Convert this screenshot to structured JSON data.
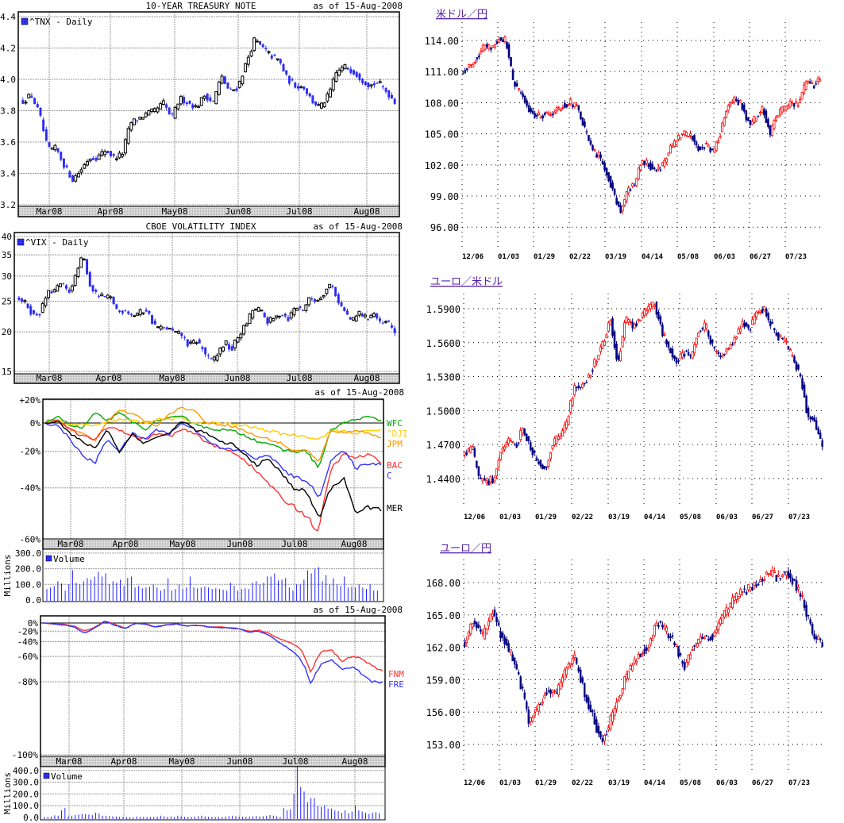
{
  "chart_data": [
    {
      "type": "candlestick",
      "id": "tnx",
      "title": "10-YEAR TREASURY NOTE",
      "as_of": "as of 15-Aug-2008",
      "legend": "^TNX - Daily",
      "yticks": [
        3.2,
        3.4,
        3.6,
        3.8,
        4.0,
        4.2,
        4.4
      ],
      "ytick_labels": [
        "3.2",
        "3.4",
        "3.6",
        "3.8",
        "4.0",
        "4.2",
        "4.4"
      ],
      "months": [
        "Mar08",
        "Apr08",
        "May08",
        "Jun08",
        "Jul08",
        "Aug08"
      ],
      "ylim": [
        3.2,
        4.4
      ],
      "closes": [
        3.86,
        3.9,
        3.78,
        3.55,
        3.56,
        3.45,
        3.36,
        3.42,
        3.5,
        3.5,
        3.55,
        3.5,
        3.52,
        3.72,
        3.75,
        3.78,
        3.8,
        3.85,
        3.75,
        3.88,
        3.85,
        3.82,
        3.9,
        3.85,
        4.02,
        3.92,
        3.95,
        4.1,
        4.25,
        4.2,
        4.15,
        4.12,
        4.0,
        3.96,
        3.95,
        3.86,
        3.82,
        3.9,
        4.05,
        4.08,
        4.05,
        4.0,
        3.96,
        3.98,
        3.92,
        3.86
      ]
    },
    {
      "type": "candlestick",
      "id": "vix",
      "title": "CBOE VOLATILITY INDEX",
      "as_of": "as of 15-Aug-2008",
      "legend": "^VIX - Daily",
      "yticks": [
        15,
        20,
        25,
        30,
        35,
        40
      ],
      "ytick_labels": [
        "15",
        "20",
        "25",
        "30",
        "35",
        "40"
      ],
      "scale": "log",
      "months": [
        "Mar08",
        "Apr08",
        "May08",
        "Jun08",
        "Jul08",
        "Aug08"
      ],
      "ylim": [
        15,
        40
      ],
      "closes": [
        25.5,
        24.5,
        22.5,
        23,
        26.5,
        27,
        28.5,
        26.5,
        30,
        35,
        28,
        26,
        25.8,
        25.5,
        23,
        23.5,
        22.5,
        23,
        23.5,
        21,
        20.5,
        20.5,
        19.8,
        19.5,
        18,
        18.8,
        17.5,
        16,
        17,
        18.5,
        17.5,
        19.5,
        21,
        23.5,
        23.5,
        21.5,
        22,
        23,
        22,
        24,
        23.5,
        25.5,
        25,
        26.5,
        28.5,
        25,
        23,
        21.5,
        23,
        22,
        23,
        21,
        21.5,
        20
      ]
    },
    {
      "type": "line",
      "id": "banks",
      "as_of": "as of 15-Aug-2008",
      "scale": "log-percent",
      "yticks": [
        20,
        0,
        -20,
        -40,
        -60
      ],
      "ytick_labels": [
        "+20%",
        "0%",
        "-20%",
        "-40%",
        "-60%"
      ],
      "months": [
        "Mar08",
        "Apr08",
        "May08",
        "Jun08",
        "Jul08",
        "Aug08"
      ],
      "ylim": [
        -60,
        20
      ],
      "series": [
        {
          "name": "WFC",
          "color": "#00aa00",
          "values": [
            0,
            6,
            -2,
            -4,
            8,
            2,
            8,
            1,
            -5,
            2,
            4,
            5,
            0,
            -4,
            -5,
            -6,
            -9,
            -13,
            -15,
            -19,
            -20,
            -20,
            -30,
            -5,
            0,
            3,
            5,
            2
          ]
        },
        {
          "name": "^DJI",
          "color": "#ffcc00",
          "values": [
            0,
            2,
            -2,
            -1,
            -2,
            0,
            3,
            2,
            0,
            3,
            3,
            4,
            0,
            0,
            0,
            -1,
            -2,
            -4,
            -6,
            -8,
            -9,
            -10,
            -12,
            -6,
            -6,
            -8,
            -6,
            -5
          ]
        },
        {
          "name": "JPM",
          "color": "#ff9900",
          "values": [
            0,
            3,
            -5,
            -8,
            -13,
            2,
            11,
            7,
            2,
            -2,
            8,
            13,
            10,
            0,
            -1,
            -2,
            -6,
            -10,
            -12,
            -15,
            -20,
            -19,
            -27,
            -5,
            -8,
            -5,
            -8,
            -11
          ]
        },
        {
          "name": "BAC",
          "color": "#ff3333",
          "values": [
            0,
            2,
            -5,
            -10,
            -12,
            -3,
            -5,
            -10,
            -12,
            -8,
            -10,
            -5,
            -8,
            -14,
            -18,
            -20,
            -25,
            -32,
            -38,
            -45,
            -48,
            -52,
            -58,
            -30,
            -22,
            -24,
            -22,
            -27
          ]
        },
        {
          "name": "C",
          "color": "#3333ff",
          "values": [
            0,
            -2,
            -12,
            -23,
            -27,
            -12,
            -20,
            -8,
            -12,
            -5,
            -8,
            0,
            -5,
            -12,
            -18,
            -19,
            -20,
            -25,
            -22,
            -30,
            -35,
            -36,
            -45,
            -25,
            -20,
            -30,
            -27,
            -28
          ]
        },
        {
          "name": "MER",
          "color": "#000000",
          "values": [
            0,
            2,
            -8,
            -14,
            -18,
            -5,
            -21,
            -8,
            -15,
            -10,
            -8,
            2,
            -5,
            -8,
            -14,
            -15,
            -22,
            -28,
            -25,
            -33,
            -40,
            -42,
            -53,
            -40,
            -35,
            -52,
            -48,
            -50
          ]
        }
      ],
      "volume": {
        "legend": "Volume",
        "ylabel": "Millions",
        "yticks": [
          0,
          100,
          200,
          300
        ],
        "ytick_labels": [
          "0.0",
          "100.0",
          "200.0",
          "300.0"
        ],
        "values": [
          70,
          80,
          90,
          120,
          105,
          60,
          100,
          190,
          110,
          100,
          120,
          140,
          130,
          150,
          180,
          150,
          170,
          100,
          120,
          110,
          130,
          90,
          140,
          150,
          80,
          90,
          75,
          80,
          85,
          100,
          80,
          60,
          70,
          140,
          60,
          70,
          100,
          70,
          80,
          150,
          80,
          75,
          80,
          85,
          80,
          70,
          75,
          70,
          65,
          60,
          110,
          90,
          60,
          70,
          75,
          70,
          110,
          120,
          100,
          110,
          150,
          150,
          170,
          125,
          130,
          140,
          80,
          60,
          100,
          100,
          130,
          190,
          170,
          200,
          210,
          120,
          160,
          100,
          140,
          100,
          90,
          150,
          80,
          85,
          80,
          100,
          80,
          70,
          100,
          60,
          60
        ]
      }
    },
    {
      "type": "line",
      "id": "gse",
      "as_of": "as of 15-Aug-2008",
      "scale": "log-percent",
      "yticks": [
        0,
        -20,
        -40,
        -60,
        -80,
        -100
      ],
      "ytick_labels": [
        "0%",
        "-20%",
        "-40%",
        "-60%",
        "-80%",
        "-100%"
      ],
      "months": [
        "Mar08",
        "Apr08",
        "May08",
        "Jun08",
        "Jul08",
        "Aug08"
      ],
      "ylim": [
        -100,
        0
      ],
      "series": [
        {
          "name": "FNM",
          "color": "#ff3333",
          "values": [
            0,
            -2,
            -4,
            -8,
            -20,
            -12,
            5,
            -4,
            -14,
            0,
            -3,
            -10,
            -5,
            -2,
            -8,
            -5,
            -10,
            -10,
            -12,
            -14,
            -20,
            -18,
            -25,
            -35,
            -42,
            -50,
            -75,
            -55,
            -52,
            -65,
            -60,
            -62,
            -70,
            -73
          ]
        },
        {
          "name": "FRE",
          "color": "#3333ff",
          "values": [
            0,
            -2,
            -5,
            -10,
            -25,
            -14,
            5,
            -6,
            -14,
            -1,
            -4,
            -10,
            -6,
            -3,
            -8,
            -6,
            -10,
            -11,
            -13,
            -15,
            -22,
            -20,
            -28,
            -42,
            -52,
            -62,
            -82,
            -68,
            -63,
            -72,
            -70,
            -75,
            -80,
            -80
          ]
        }
      ],
      "volume": {
        "legend": "Volume",
        "ylabel": "Millions",
        "yticks": [
          0,
          100,
          200,
          300,
          400
        ],
        "ytick_labels": [
          "0.0",
          "100.0",
          "200.0",
          "300.0",
          "400.0"
        ],
        "values": [
          5,
          5,
          8,
          18,
          15,
          60,
          80,
          10,
          15,
          20,
          25,
          30,
          28,
          25,
          20,
          40,
          35,
          15,
          15,
          12,
          10,
          8,
          6,
          5,
          4,
          3,
          3,
          8,
          5,
          5,
          4,
          4,
          5,
          8,
          15,
          10,
          5,
          8,
          3,
          15,
          10,
          5,
          4,
          5,
          8,
          10,
          15,
          8,
          5,
          5,
          4,
          3,
          5,
          8,
          10,
          15,
          10,
          8,
          5,
          5,
          8,
          10,
          12,
          10,
          10,
          12,
          20,
          15,
          10,
          5,
          80,
          60,
          70,
          200,
          430,
          260,
          220,
          130,
          165,
          165,
          95,
          90,
          105,
          75,
          75,
          60,
          55,
          40,
          60,
          35,
          50,
          105,
          60,
          50,
          40,
          30,
          40,
          45,
          35
        ]
      }
    },
    {
      "type": "candlestick",
      "id": "usdjpy",
      "title": "米ドル／円",
      "dates": [
        "12/06",
        "01/03",
        "01/29",
        "02/22",
        "03/19",
        "04/14",
        "05/08",
        "06/03",
        "06/27",
        "07/23"
      ],
      "yticks": [
        96,
        99,
        102,
        105,
        108,
        111,
        114
      ],
      "ytick_labels": [
        "96.00",
        "99.00",
        "102.00",
        "105.00",
        "108.00",
        "111.00",
        "114.00"
      ],
      "ylim": [
        93,
        116
      ],
      "closes": [
        111,
        111.5,
        112.5,
        113.5,
        113.3,
        114.2,
        114,
        110,
        109,
        107.5,
        106.8,
        106.8,
        107,
        107.2,
        107.8,
        108,
        107.5,
        105.5,
        103.5,
        102.8,
        101.5,
        99.5,
        97.5,
        99.5,
        100,
        102.5,
        102,
        101.5,
        102,
        103.5,
        104.5,
        105,
        104.8,
        103.5,
        104,
        103.2,
        105,
        107.5,
        108.2,
        107.8,
        106,
        106.5,
        107.5,
        105,
        107,
        107.5,
        108,
        107.8,
        110,
        109.5,
        110.5
      ]
    },
    {
      "type": "candlestick",
      "id": "eurusd",
      "title": "ユーロ／米ドル",
      "dates": [
        "12/06",
        "01/03",
        "01/29",
        "02/22",
        "03/19",
        "04/14",
        "05/08",
        "06/03",
        "06/27",
        "07/23"
      ],
      "yticks": [
        1.44,
        1.47,
        1.5,
        1.53,
        1.56,
        1.59
      ],
      "ytick_labels": [
        "1.4400",
        "1.4700",
        "1.5000",
        "1.5300",
        "1.5600",
        "1.5900"
      ],
      "ylim": [
        1.41,
        1.61
      ],
      "closes": [
        1.462,
        1.468,
        1.44,
        1.436,
        1.44,
        1.465,
        1.472,
        1.468,
        1.485,
        1.468,
        1.455,
        1.448,
        1.47,
        1.478,
        1.49,
        1.52,
        1.522,
        1.53,
        1.545,
        1.56,
        1.58,
        1.54,
        1.58,
        1.575,
        1.58,
        1.59,
        1.595,
        1.57,
        1.555,
        1.545,
        1.552,
        1.548,
        1.57,
        1.575,
        1.555,
        1.545,
        1.555,
        1.565,
        1.578,
        1.572,
        1.585,
        1.59,
        1.575,
        1.565,
        1.56,
        1.545,
        1.53,
        1.495,
        1.49,
        1.47
      ]
    },
    {
      "type": "candlestick",
      "id": "eurjpy",
      "title": "ユーロ／円",
      "dates": [
        "12/06",
        "01/03",
        "01/29",
        "02/22",
        "03/19",
        "04/14",
        "05/08",
        "06/03",
        "06/27",
        "07/23"
      ],
      "yticks": [
        153,
        156,
        159,
        162,
        165,
        168
      ],
      "ytick_labels": [
        "153.00",
        "156.00",
        "159.00",
        "162.00",
        "165.00",
        "168.00"
      ],
      "ylim": [
        150,
        171
      ],
      "closes": [
        162.5,
        164.5,
        163,
        165.5,
        163,
        161.5,
        159,
        155,
        156.5,
        158,
        157.5,
        160,
        161,
        158,
        155.5,
        153,
        155.5,
        158,
        160,
        161.5,
        162,
        164.5,
        163.5,
        162,
        160,
        162.5,
        163,
        163,
        164.5,
        166,
        167,
        167.5,
        168,
        169,
        168.5,
        169,
        168,
        166,
        163,
        162.5
      ]
    }
  ]
}
